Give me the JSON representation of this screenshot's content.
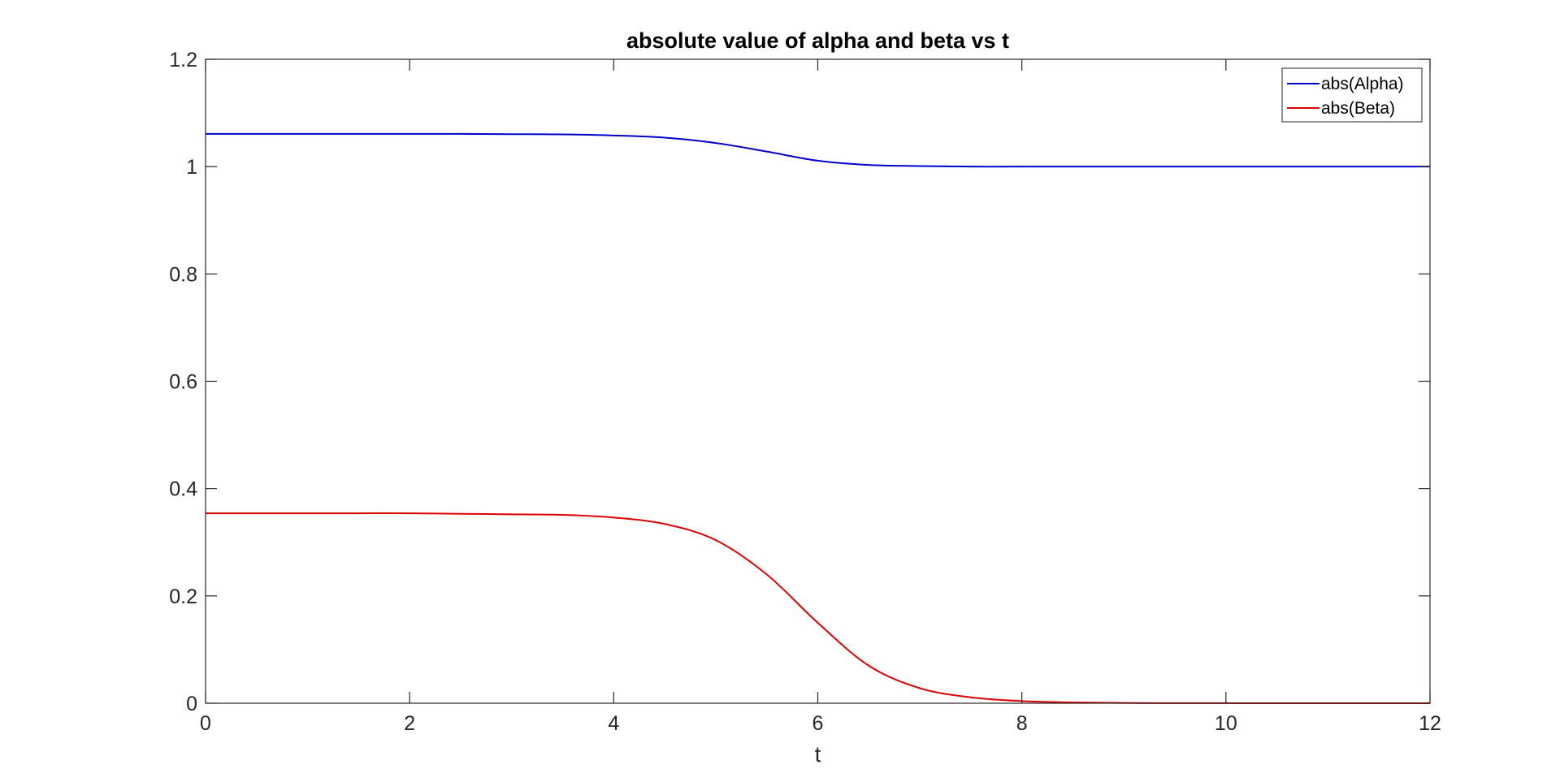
{
  "chart_data": {
    "type": "line",
    "title": "absolute value of alpha and beta vs t",
    "xlabel": "t",
    "ylabel": "",
    "xlim": [
      0,
      12
    ],
    "ylim": [
      0,
      1.2
    ],
    "x_ticks": [
      "0",
      "2",
      "4",
      "6",
      "8",
      "10",
      "12"
    ],
    "y_ticks": [
      "0",
      "0.2",
      "0.4",
      "0.6",
      "0.8",
      "1",
      "1.2"
    ],
    "grid": false,
    "legend_position": "top-right",
    "x": [
      0,
      0.5,
      1,
      1.5,
      2,
      2.5,
      3,
      3.5,
      4,
      4.5,
      5,
      5.5,
      6,
      6.5,
      7,
      7.5,
      8,
      8.5,
      9,
      9.5,
      10,
      10.5,
      11,
      11.5,
      12
    ],
    "series": [
      {
        "name": "abs(Alpha)",
        "color": "#0000cc",
        "values": [
          1.061,
          1.061,
          1.061,
          1.061,
          1.061,
          1.061,
          1.0605,
          1.06,
          1.058,
          1.054,
          1.044,
          1.028,
          1.011,
          1.003,
          1.001,
          1.0,
          1.0,
          1.0,
          1.0,
          1.0,
          1.0,
          1.0,
          1.0,
          1.0,
          1.0
        ]
      },
      {
        "name": "abs(Beta)",
        "color": "#dd0000",
        "values": [
          0.354,
          0.354,
          0.354,
          0.354,
          0.354,
          0.353,
          0.352,
          0.351,
          0.346,
          0.334,
          0.304,
          0.24,
          0.15,
          0.07,
          0.028,
          0.011,
          0.004,
          0.0015,
          0.0005,
          0.0002,
          0.0001,
          0.0,
          0.0,
          0.0,
          0.0
        ]
      }
    ]
  }
}
